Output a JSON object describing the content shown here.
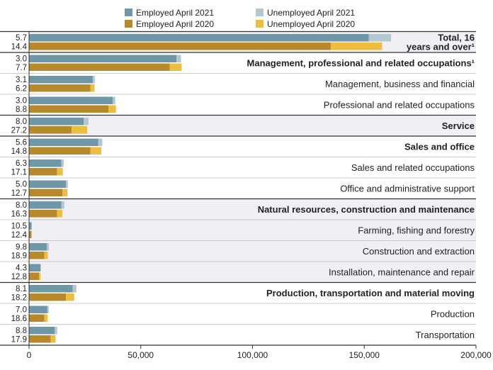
{
  "chart_data": {
    "type": "bar",
    "orientation": "horizontal",
    "stacked": true,
    "xlim": [
      0,
      200000
    ],
    "x_ticks": [
      0,
      50000,
      100000,
      150000,
      200000
    ],
    "x_tick_labels": [
      "0",
      "50,000",
      "100,000",
      "150,000",
      "200,000"
    ],
    "legend": {
      "placement": "top",
      "items": [
        {
          "name": "Employed April 2021",
          "color": "#6f97a8"
        },
        {
          "name": "Unemployed April 2021",
          "color": "#b3c8d0"
        },
        {
          "name": "Employed April 2020",
          "color": "#b8892b"
        },
        {
          "name": "Unemployed April 2020",
          "color": "#ecbd3e"
        }
      ]
    },
    "groups": [
      {
        "label": "Total, 16",
        "label2": "years and over¹",
        "bold": true,
        "shaded": true,
        "rate_2021": "5.7",
        "rate_2020": "14.4",
        "employed_2021": 152000,
        "unemployed_2021": 10000,
        "employed_2020": 135000,
        "unemployed_2020": 23000
      },
      {
        "label": "Management, professional and related occupations¹",
        "bold": true,
        "shaded": false,
        "section_start": true,
        "rate_2021": "3.0",
        "rate_2020": "7.7",
        "employed_2021": 66000,
        "unemployed_2021": 2000,
        "employed_2020": 63000,
        "unemployed_2020": 5300
      },
      {
        "label": "Management, business and financial",
        "bold": false,
        "shaded": false,
        "rate_2021": "3.1",
        "rate_2020": "6.2",
        "employed_2021": 28500,
        "unemployed_2021": 900,
        "employed_2020": 27500,
        "unemployed_2020": 1800
      },
      {
        "label": "Professional and related occupations",
        "bold": false,
        "shaded": false,
        "rate_2021": "3.0",
        "rate_2020": "8.8",
        "employed_2021": 37500,
        "unemployed_2021": 1100,
        "employed_2020": 35500,
        "unemployed_2020": 3400
      },
      {
        "label": "Service",
        "bold": true,
        "shaded": true,
        "section_start": true,
        "rate_2021": "8.0",
        "rate_2020": "27.2",
        "employed_2021": 24500,
        "unemployed_2021": 2100,
        "employed_2020": 19000,
        "unemployed_2020": 7000
      },
      {
        "label": "Sales and office",
        "bold": true,
        "shaded": false,
        "section_start": true,
        "rate_2021": "5.6",
        "rate_2020": "14.8",
        "employed_2021": 31000,
        "unemployed_2021": 1800,
        "employed_2020": 27500,
        "unemployed_2020": 4800
      },
      {
        "label": "Sales and related occupations",
        "bold": false,
        "shaded": false,
        "rate_2021": "6.3",
        "rate_2020": "17.1",
        "employed_2021": 14500,
        "unemployed_2021": 1000,
        "employed_2020": 12500,
        "unemployed_2020": 2600
      },
      {
        "label": "Office and administrative support",
        "bold": false,
        "shaded": false,
        "rate_2021": "5.0",
        "rate_2020": "12.7",
        "employed_2021": 16500,
        "unemployed_2021": 900,
        "employed_2020": 15000,
        "unemployed_2020": 2200
      },
      {
        "label": "Natural resources, construction and maintenance",
        "bold": true,
        "shaded": true,
        "section_start": true,
        "rate_2021": "8.0",
        "rate_2020": "16.3",
        "employed_2021": 14500,
        "unemployed_2021": 1300,
        "employed_2020": 12500,
        "unemployed_2020": 2400
      },
      {
        "label": "Farming, fishing and forestry",
        "bold": false,
        "shaded": true,
        "rate_2021": "10.5",
        "rate_2020": "12.4",
        "employed_2021": 1100,
        "unemployed_2021": 130,
        "employed_2020": 1050,
        "unemployed_2020": 150
      },
      {
        "label": "Construction and extraction",
        "bold": false,
        "shaded": true,
        "rate_2021": "9.8",
        "rate_2020": "18.9",
        "employed_2021": 8000,
        "unemployed_2021": 900,
        "employed_2020": 6800,
        "unemployed_2020": 1600
      },
      {
        "label": "Installation, maintenance and repair",
        "bold": false,
        "shaded": true,
        "rate_2021": "4.3",
        "rate_2020": "12.8",
        "employed_2021": 5100,
        "unemployed_2021": 230,
        "employed_2020": 4500,
        "unemployed_2020": 650
      },
      {
        "label": "Production, transportation and material moving",
        "bold": true,
        "shaded": false,
        "section_start": true,
        "rate_2021": "8.1",
        "rate_2020": "18.2",
        "employed_2021": 19500,
        "unemployed_2021": 1700,
        "employed_2020": 16500,
        "unemployed_2020": 3700
      },
      {
        "label": "Production",
        "bold": false,
        "shaded": false,
        "rate_2021": "7.0",
        "rate_2020": "18.6",
        "employed_2021": 8200,
        "unemployed_2021": 600,
        "employed_2020": 6800,
        "unemployed_2020": 1550
      },
      {
        "label": "Transportation",
        "bold": false,
        "shaded": false,
        "rate_2021": "8.8",
        "rate_2020": "17.9",
        "employed_2021": 11500,
        "unemployed_2021": 1100,
        "employed_2020": 9700,
        "unemployed_2020": 2100
      }
    ]
  }
}
